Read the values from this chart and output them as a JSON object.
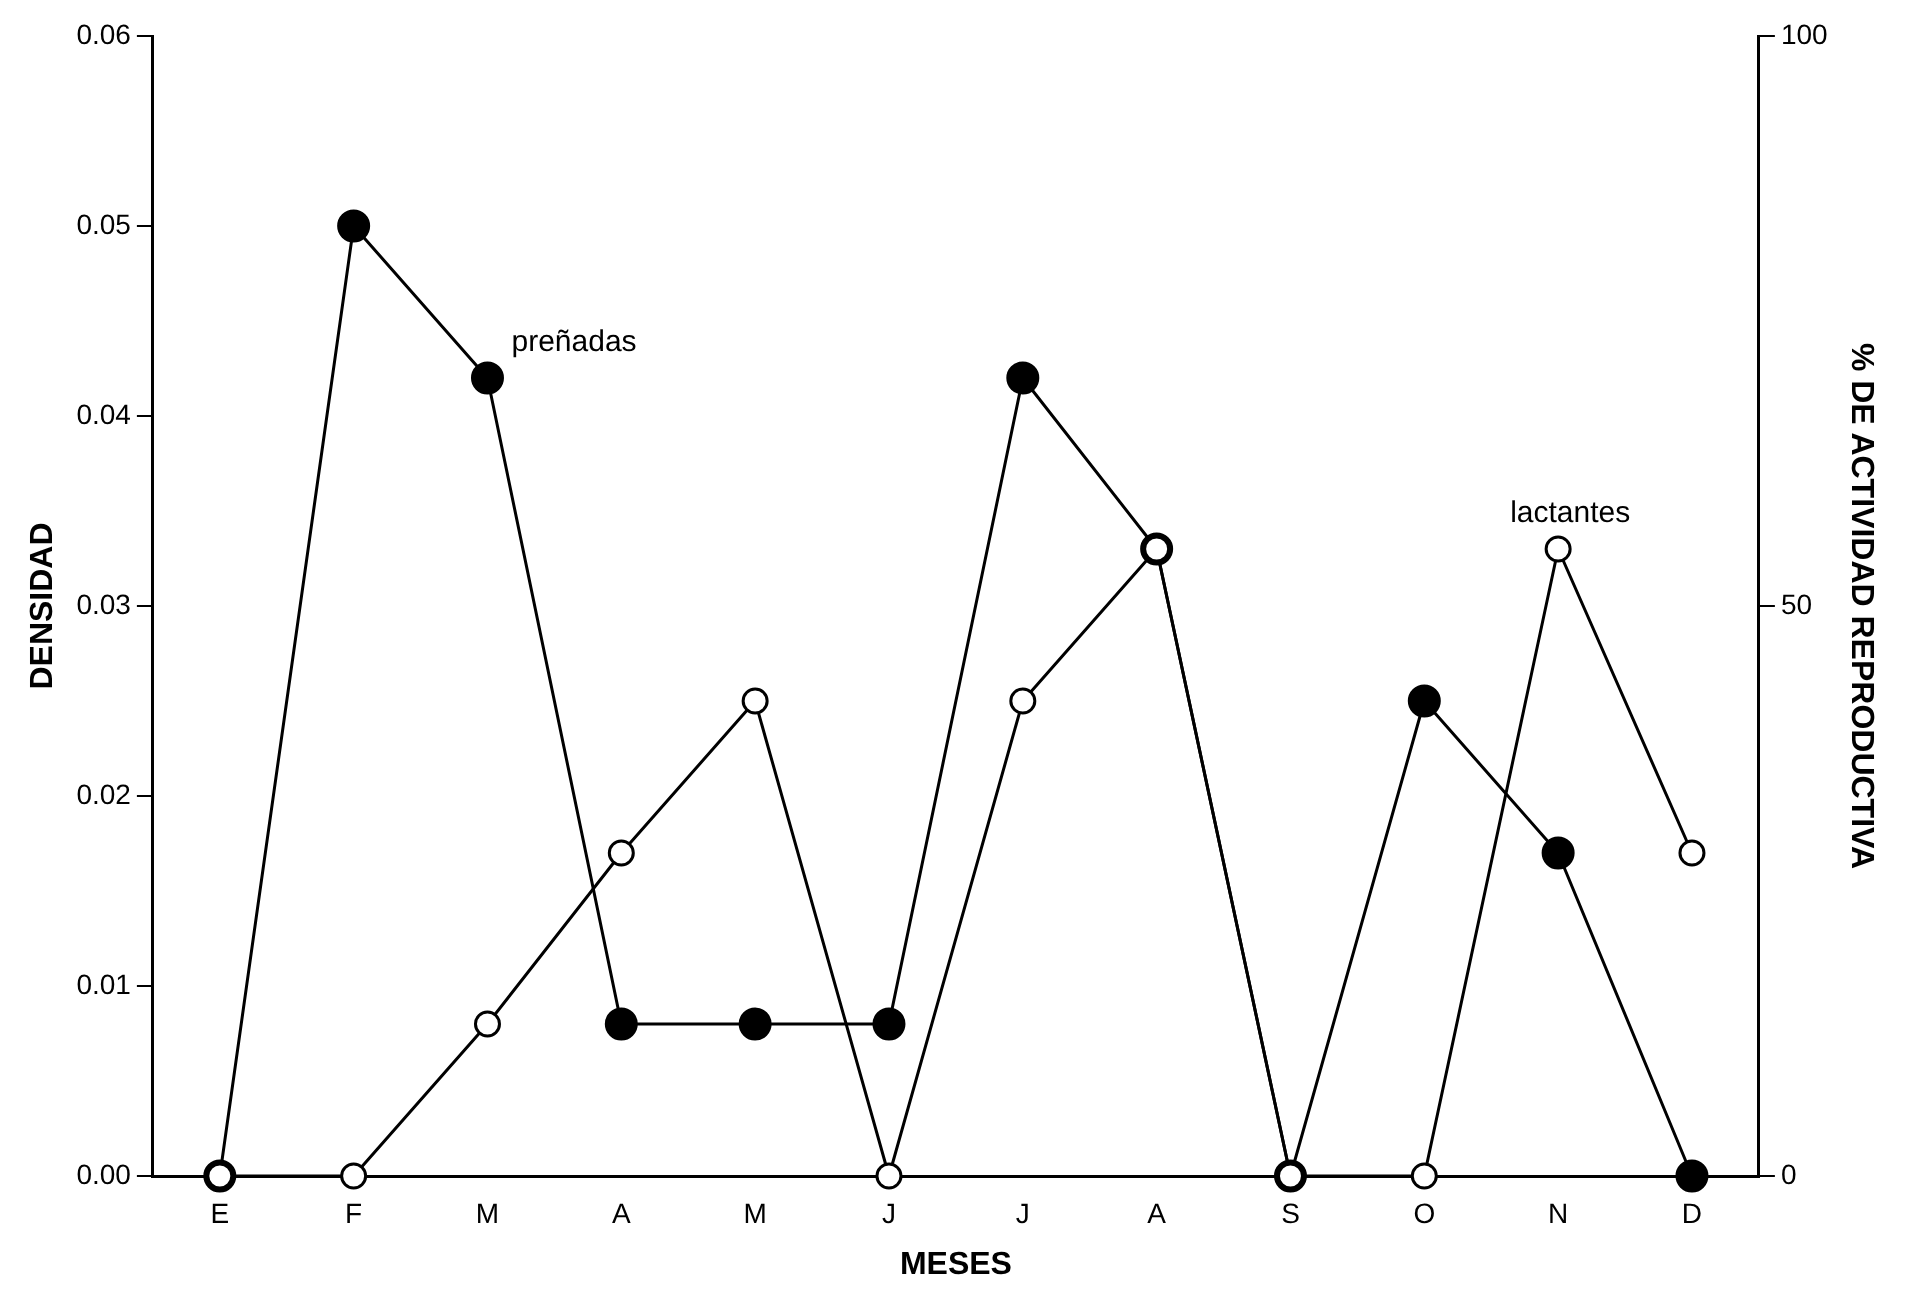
{
  "chart_data": {
    "type": "line",
    "xlabel": "MESES",
    "ylabel": "DENSIDAD",
    "y2label": "% DE ACTIVIDAD REPRODUCTIVA",
    "categories": [
      "E",
      "F",
      "M",
      "A",
      "M",
      "J",
      "J",
      "A",
      "S",
      "O",
      "N",
      "D"
    ],
    "series": [
      {
        "name": "preñadas",
        "color": "#000000",
        "values": [
          0,
          0.05,
          0.042,
          0.008,
          0.008,
          0.008,
          0.042,
          0.033,
          0,
          0.025,
          0.017,
          0
        ]
      },
      {
        "name": "lactantes",
        "color": "#ffffff",
        "values": [
          0,
          0,
          0.008,
          0.017,
          0.025,
          0,
          0.025,
          0.033,
          0,
          0,
          0.033,
          0.017
        ]
      }
    ],
    "ylim": [
      0,
      0.06
    ],
    "yticks": [
      {
        "value": 0,
        "label": "0.00"
      },
      {
        "value": 0.01,
        "label": "0.01"
      },
      {
        "value": 0.02,
        "label": "0.02"
      },
      {
        "value": 0.03,
        "label": "0.03"
      },
      {
        "value": 0.04,
        "label": "0.04"
      },
      {
        "value": 0.05,
        "label": "0.05"
      },
      {
        "value": 0.06,
        "label": "0.06"
      }
    ],
    "y2lim": [
      0,
      100
    ],
    "y2ticks": [
      0,
      50,
      100
    ],
    "grid": false,
    "legend": false,
    "marker": "circle",
    "line_style": "solid"
  }
}
